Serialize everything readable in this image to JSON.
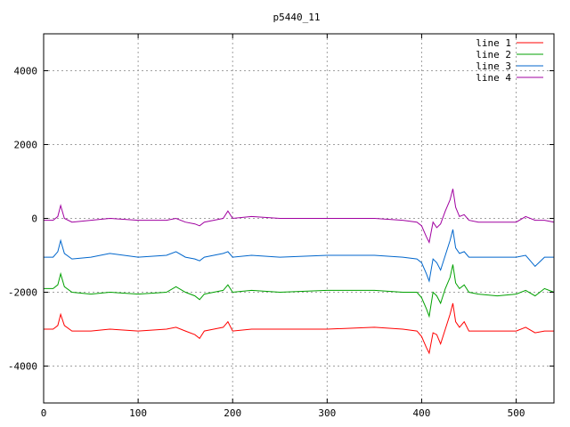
{
  "chart_data": {
    "type": "line",
    "title": "p5440_11",
    "xlabel": "",
    "ylabel": "",
    "xlim": [
      0,
      540
    ],
    "ylim": [
      -5000,
      5000
    ],
    "xticks": [
      0,
      100,
      200,
      300,
      400,
      500
    ],
    "yticks": [
      -4000,
      -2000,
      0,
      2000,
      4000
    ],
    "xtick_labels": [
      "0",
      "100",
      "200",
      "300",
      "400",
      "500"
    ],
    "ytick_labels": [
      "-4000",
      "-2000",
      "0",
      "2000",
      "4000"
    ],
    "grid": true,
    "legend_position": "top-right",
    "series": [
      {
        "name": "line 1",
        "color": "#ff0000",
        "x": [
          0,
          10,
          15,
          18,
          22,
          30,
          50,
          70,
          100,
          130,
          140,
          150,
          160,
          165,
          170,
          180,
          190,
          195,
          200,
          220,
          250,
          300,
          350,
          380,
          395,
          400,
          405,
          408,
          412,
          416,
          420,
          425,
          430,
          433,
          436,
          440,
          445,
          450,
          460,
          480,
          500,
          510,
          520,
          530,
          540
        ],
        "y": [
          -3000,
          -3000,
          -2900,
          -2600,
          -2900,
          -3050,
          -3050,
          -3000,
          -3050,
          -3000,
          -2950,
          -3050,
          -3150,
          -3250,
          -3050,
          -3000,
          -2950,
          -2800,
          -3050,
          -3000,
          -3000,
          -3000,
          -2950,
          -3000,
          -3050,
          -3200,
          -3500,
          -3650,
          -3100,
          -3150,
          -3400,
          -3000,
          -2600,
          -2300,
          -2800,
          -2950,
          -2800,
          -3050,
          -3050,
          -3050,
          -3050,
          -2950,
          -3100,
          -3050,
          -3050
        ]
      },
      {
        "name": "line 2",
        "color": "#00a000",
        "x": [
          0,
          10,
          15,
          18,
          22,
          30,
          50,
          70,
          100,
          130,
          140,
          150,
          160,
          165,
          170,
          180,
          190,
          195,
          200,
          220,
          250,
          300,
          350,
          380,
          395,
          400,
          405,
          408,
          412,
          416,
          420,
          425,
          430,
          433,
          436,
          440,
          445,
          450,
          460,
          480,
          500,
          510,
          520,
          530,
          540
        ],
        "y": [
          -1900,
          -1900,
          -1800,
          -1500,
          -1850,
          -2000,
          -2050,
          -2000,
          -2050,
          -2000,
          -1850,
          -2000,
          -2100,
          -2200,
          -2050,
          -2000,
          -1950,
          -1800,
          -2000,
          -1950,
          -2000,
          -1950,
          -1950,
          -2000,
          -2000,
          -2150,
          -2450,
          -2650,
          -2000,
          -2100,
          -2300,
          -1900,
          -1600,
          -1250,
          -1750,
          -1900,
          -1800,
          -2000,
          -2050,
          -2100,
          -2050,
          -1950,
          -2100,
          -1900,
          -2000
        ]
      },
      {
        "name": "line 3",
        "color": "#0066cc",
        "x": [
          0,
          10,
          15,
          18,
          22,
          30,
          50,
          70,
          100,
          130,
          140,
          150,
          160,
          165,
          170,
          180,
          190,
          195,
          200,
          220,
          250,
          300,
          350,
          380,
          395,
          400,
          405,
          408,
          412,
          416,
          420,
          425,
          430,
          433,
          436,
          440,
          445,
          450,
          460,
          480,
          500,
          510,
          515,
          520,
          530,
          540
        ],
        "y": [
          -1050,
          -1050,
          -900,
          -600,
          -950,
          -1100,
          -1050,
          -950,
          -1050,
          -1000,
          -900,
          -1050,
          -1100,
          -1150,
          -1050,
          -1000,
          -950,
          -900,
          -1050,
          -1000,
          -1050,
          -1000,
          -1000,
          -1050,
          -1100,
          -1200,
          -1500,
          -1700,
          -1100,
          -1200,
          -1400,
          -1000,
          -600,
          -300,
          -800,
          -950,
          -900,
          -1050,
          -1050,
          -1050,
          -1050,
          -1000,
          -1150,
          -1300,
          -1050,
          -1050
        ]
      },
      {
        "name": "line 4",
        "color": "#a000a0",
        "x": [
          0,
          10,
          15,
          18,
          22,
          30,
          50,
          70,
          100,
          130,
          140,
          150,
          160,
          165,
          170,
          180,
          190,
          195,
          200,
          220,
          250,
          300,
          350,
          380,
          395,
          400,
          405,
          408,
          412,
          416,
          420,
          425,
          430,
          433,
          436,
          440,
          445,
          450,
          460,
          480,
          500,
          510,
          520,
          530,
          540
        ],
        "y": [
          -50,
          -50,
          50,
          350,
          0,
          -100,
          -50,
          0,
          -50,
          -50,
          0,
          -100,
          -150,
          -200,
          -100,
          -50,
          0,
          200,
          0,
          50,
          0,
          0,
          0,
          -50,
          -100,
          -200,
          -500,
          -650,
          -100,
          -250,
          -150,
          200,
          500,
          800,
          300,
          50,
          100,
          -50,
          -100,
          -100,
          -100,
          50,
          -50,
          -50,
          -100
        ]
      }
    ]
  }
}
